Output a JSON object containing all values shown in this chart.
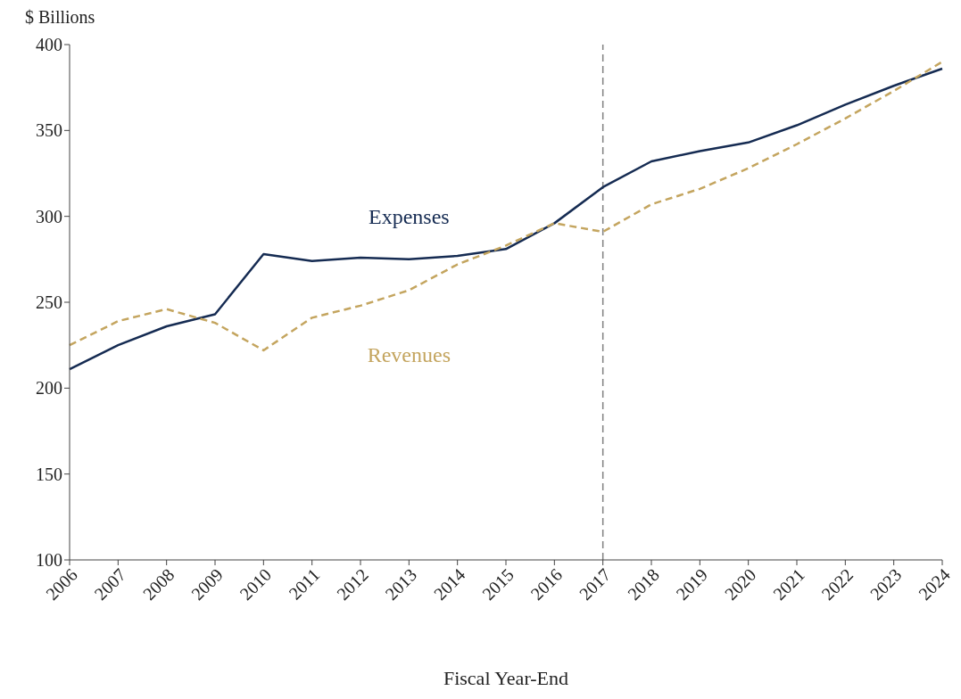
{
  "chart_data": {
    "type": "line",
    "ylabel": "$ Billions",
    "xlabel": "Fiscal Year-End",
    "categories": [
      "2006",
      "2007",
      "2008",
      "2009",
      "2010",
      "2011",
      "2012",
      "2013",
      "2014",
      "2015",
      "2016",
      "2017",
      "2018",
      "2019",
      "2020",
      "2021",
      "2022",
      "2023",
      "2024"
    ],
    "series": [
      {
        "name": "Expenses",
        "color": "#152b52",
        "line_style": "solid",
        "values": [
          211,
          225,
          236,
          243,
          278,
          274,
          276,
          275,
          277,
          281,
          296,
          317,
          332,
          338,
          343,
          353,
          365,
          376,
          386
        ]
      },
      {
        "name": "Revenues",
        "color": "#c4a55f",
        "line_style": "dashed",
        "values": [
          225,
          239,
          246,
          238,
          222,
          241,
          248,
          257,
          272,
          283,
          296,
          291,
          307,
          316,
          328,
          342,
          357,
          373,
          390
        ]
      }
    ],
    "ylim": [
      100,
      400
    ],
    "yticks": [
      100,
      150,
      200,
      250,
      300,
      350,
      400
    ],
    "grid": false,
    "legend": false,
    "marker": "none",
    "ref_lines": [
      {
        "axis": "x",
        "value": "2017",
        "color": "#808080",
        "line_style": "dashed"
      }
    ]
  }
}
